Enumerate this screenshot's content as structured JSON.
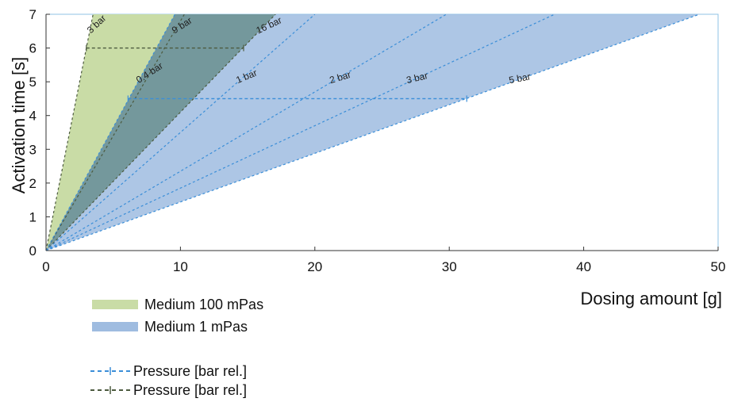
{
  "chart_data": {
    "type": "area",
    "xlabel": "Dosing amount [g]",
    "ylabel": "Activation time [s]",
    "xlim": [
      0,
      50
    ],
    "ylim": [
      0,
      7
    ],
    "x_ticks": [
      "0",
      "10",
      "20",
      "30",
      "40",
      "50"
    ],
    "y_ticks": [
      "0",
      "1",
      "2",
      "3",
      "4",
      "5",
      "6",
      "7"
    ],
    "grid": false,
    "series": [
      {
        "name": "Medium 100 mPas",
        "color": "#c9dca6",
        "region_slopes_s_per_g": [
          2.0,
          0.41
        ],
        "pressure_lines": [
          {
            "label": "3 bar",
            "slope": 2.0
          },
          {
            "label": "9 bar",
            "slope": 0.68
          },
          {
            "label": "16 bar",
            "slope": 0.41
          }
        ],
        "reference_time_s": 6.0,
        "reference_dosing_g": [
          3.0,
          14.7
        ]
      },
      {
        "name": "Medium 1 mPas",
        "color": "#9fbce0",
        "region_slopes_s_per_g": [
          0.73,
          0.144
        ],
        "pressure_lines": [
          {
            "label": "0.4 bar",
            "slope": 0.73
          },
          {
            "label": "1 bar",
            "slope": 0.35
          },
          {
            "label": "2 bar",
            "slope": 0.235
          },
          {
            "label": "3 bar",
            "slope": 0.185
          },
          {
            "label": "5 bar",
            "slope": 0.144
          }
        ],
        "reference_time_s": 4.5,
        "reference_dosing_g": [
          6.1,
          31.3
        ]
      }
    ],
    "legend": {
      "placement": "bottom-left",
      "items": [
        {
          "label": "Medium 100 mPas",
          "kind": "area",
          "color": "#c9dca6"
        },
        {
          "label": "Medium 1 mPas",
          "kind": "area",
          "color": "#9fbce0"
        },
        {
          "label": "Pressure [bar rel.]",
          "kind": "dashed-line",
          "color": "#3a8ed8"
        },
        {
          "label": "Pressure [bar rel.]",
          "kind": "dashed-line",
          "color": "#4c5a3f"
        }
      ]
    }
  }
}
